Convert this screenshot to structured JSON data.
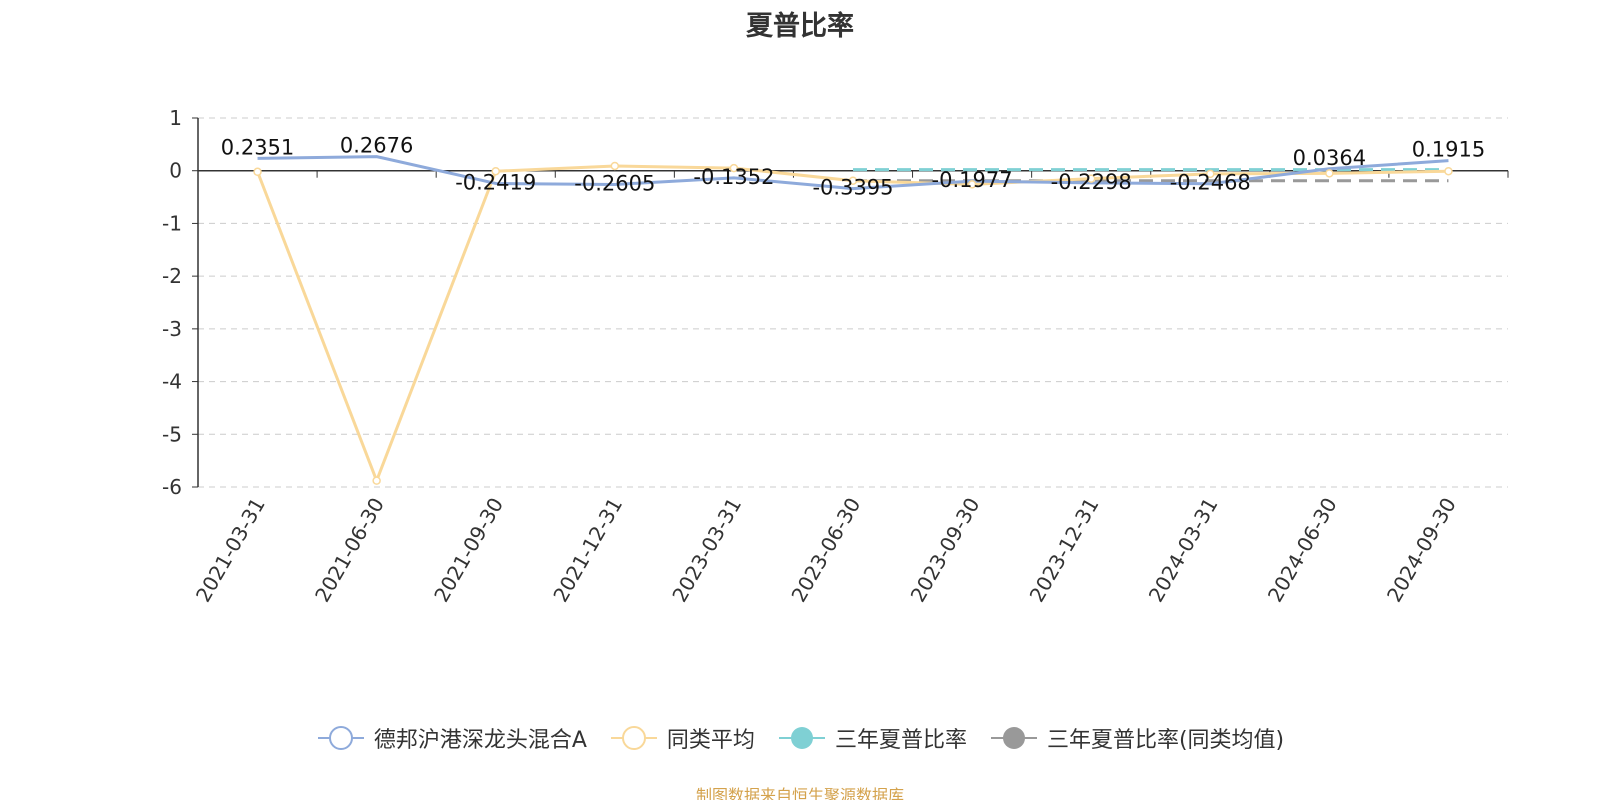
{
  "chart_data": {
    "type": "line",
    "title": "夏普比率",
    "categories": [
      "2021-03-31",
      "2021-06-30",
      "2021-09-30",
      "2021-12-31",
      "2023-03-31",
      "2023-06-30",
      "2023-09-30",
      "2023-12-31",
      "2024-03-31",
      "2024-06-30",
      "2024-09-30"
    ],
    "ylim": [
      -6,
      1
    ],
    "yticks": [
      "1",
      "0",
      "-1",
      "-2",
      "-3",
      "-4",
      "-5",
      "-6"
    ],
    "grid": true,
    "legend_position": "bottom",
    "series": [
      {
        "name": "德邦沪港深龙头混合A",
        "color": "#8eaadb",
        "marker": "hollow-circle",
        "values": [
          0.2351,
          0.2676,
          -0.2419,
          -0.2605,
          -0.1352,
          -0.3395,
          -0.1977,
          -0.2298,
          -0.2468,
          0.0364,
          0.1915
        ],
        "labels": [
          "0.2351",
          "0.2676",
          "-0.2419",
          "-0.2605",
          "-0.1352",
          "-0.3395",
          "-0.1977",
          "-0.2298",
          "-0.2468",
          "0.0364",
          "0.1915"
        ]
      },
      {
        "name": "同类平均",
        "color": "#f9d899",
        "marker": "hollow-circle",
        "values": [
          -0.02,
          -5.88,
          -0.01,
          0.09,
          0.05,
          -0.19,
          -0.26,
          -0.15,
          -0.06,
          -0.05,
          -0.01
        ]
      },
      {
        "name": "三年夏普比率",
        "color": "#7fd0d4",
        "marker": "filled-circle",
        "style": "dashed",
        "x_from": "2023-06-30",
        "x_to": "2024-09-30",
        "value": 0.02
      },
      {
        "name": "三年夏普比率(同类均值)",
        "color": "#999999",
        "marker": "filled-circle",
        "style": "dashed",
        "x_from": "2023-06-30",
        "x_to": "2024-09-30",
        "value": -0.19
      }
    ]
  },
  "source_note": "制图数据来自恒生聚源数据库"
}
